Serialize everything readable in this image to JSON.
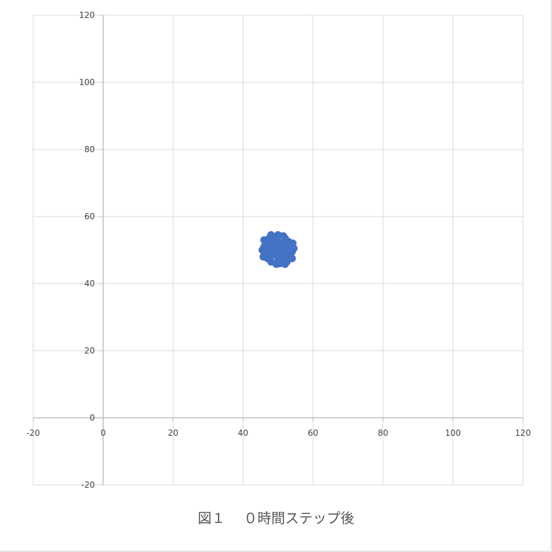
{
  "caption": "図１　 ０時間ステップ後",
  "chart_data": {
    "type": "scatter",
    "title": "",
    "xlabel": "",
    "ylabel": "",
    "xlim": [
      -20,
      120
    ],
    "ylim": [
      -20,
      120
    ],
    "x_ticks": [
      -20,
      0,
      20,
      40,
      60,
      80,
      100,
      120
    ],
    "y_ticks": [
      -20,
      0,
      20,
      40,
      60,
      80,
      100,
      120
    ],
    "grid": true,
    "legend": "none",
    "series": [
      {
        "color": "#4472c4",
        "points": [
          [
            50.0,
            50.0
          ],
          [
            49.0,
            50.5
          ],
          [
            51.0,
            49.5
          ],
          [
            50.5,
            51.5
          ],
          [
            49.5,
            48.5
          ],
          [
            48.0,
            50.0
          ],
          [
            52.0,
            50.0
          ],
          [
            50.0,
            52.5
          ],
          [
            50.0,
            47.5
          ],
          [
            47.5,
            51.5
          ],
          [
            52.5,
            48.5
          ],
          [
            48.5,
            53.0
          ],
          [
            51.5,
            47.0
          ],
          [
            46.5,
            49.0
          ],
          [
            53.5,
            51.0
          ],
          [
            49.0,
            54.0
          ],
          [
            51.0,
            46.5
          ],
          [
            47.0,
            47.5
          ],
          [
            53.0,
            52.5
          ],
          [
            46.0,
            51.0
          ],
          [
            54.0,
            49.5
          ],
          [
            48.0,
            46.5
          ],
          [
            52.0,
            53.5
          ],
          [
            50.0,
            54.5
          ],
          [
            50.5,
            46.0
          ],
          [
            45.5,
            50.0
          ],
          [
            54.5,
            50.5
          ],
          [
            47.5,
            53.5
          ],
          [
            52.5,
            46.5
          ],
          [
            46.5,
            52.5
          ],
          [
            53.5,
            48.0
          ],
          [
            49.5,
            45.8
          ],
          [
            51.5,
            54.2
          ],
          [
            48.5,
            49.0
          ],
          [
            51.5,
            51.0
          ],
          [
            50.0,
            49.0
          ],
          [
            49.0,
            52.0
          ],
          [
            51.0,
            52.0
          ],
          [
            47.0,
            50.0
          ],
          [
            53.0,
            50.0
          ],
          [
            45.8,
            48.0
          ],
          [
            54.2,
            52.0
          ],
          [
            48.0,
            54.5
          ],
          [
            52.0,
            45.8
          ],
          [
            46.0,
            53.0
          ],
          [
            54.0,
            47.5
          ],
          [
            50.8,
            48.2
          ],
          [
            49.2,
            51.8
          ],
          [
            47.8,
            48.0
          ],
          [
            52.2,
            52.0
          ]
        ]
      }
    ]
  }
}
